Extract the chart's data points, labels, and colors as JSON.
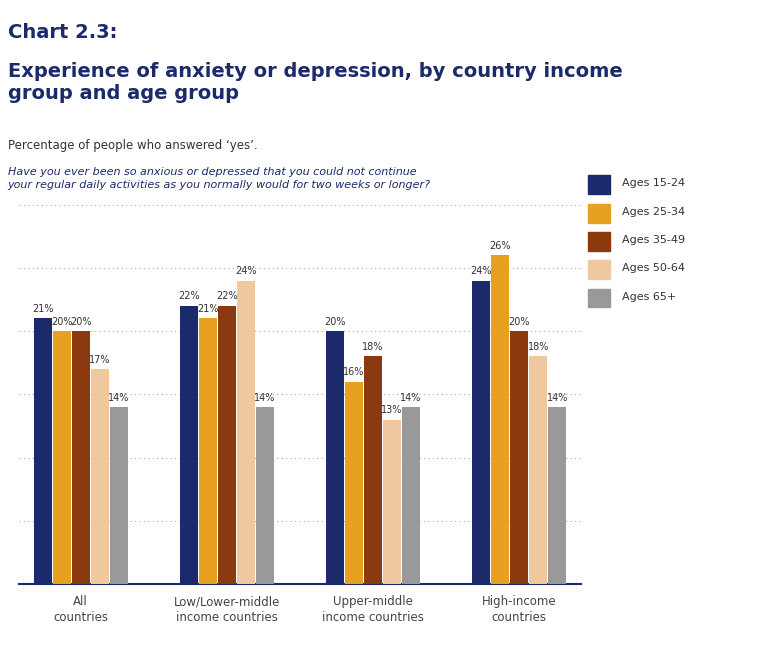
{
  "title_line1": "Chart 2.3:",
  "title_line2": "Experience of anxiety or depression, by country income\ngroup and age group",
  "subtitle": "Percentage of people who answered ‘yes’.",
  "question": "Have you ever been so anxious or depressed that you could not continue\nyour regular daily activities as you normally would for two weeks or longer?",
  "categories": [
    "All\ncountries",
    "Low/Lower-middle\nincome countries",
    "Upper-middle\nincome countries",
    "High-income\ncountries"
  ],
  "age_groups": [
    "Ages 15-24",
    "Ages 25-34",
    "Ages 35-49",
    "Ages 50-64",
    "Ages 65+"
  ],
  "colors": [
    "#1b2a6b",
    "#e8a020",
    "#8b3a0f",
    "#f0c8a0",
    "#999999"
  ],
  "values": [
    [
      21,
      20,
      20,
      17,
      14
    ],
    [
      22,
      21,
      22,
      24,
      14
    ],
    [
      20,
      16,
      18,
      13,
      14
    ],
    [
      24,
      26,
      20,
      18,
      14
    ]
  ],
  "ylim": [
    0,
    30
  ],
  "bar_width": 0.13,
  "top_bar_color": "#c8712a",
  "background_color": "#ffffff",
  "title_color": "#1b2a6b",
  "question_color": "#1b2a6b",
  "logo_bg_color": "#1b2a6b"
}
